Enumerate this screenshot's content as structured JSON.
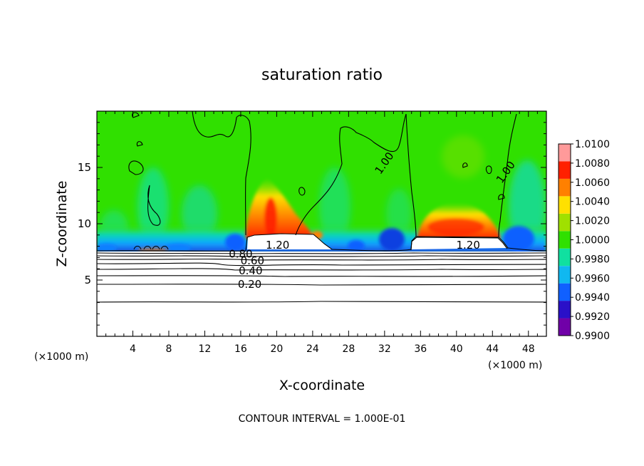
{
  "chart_data": {
    "type": "heatmap",
    "title": "saturation ratio",
    "xlabel": "X-coordinate",
    "ylabel": "Z-coordinate",
    "x_unit_left": "(×1000 m)",
    "x_unit_right": "(×1000 m)",
    "xlim": [
      0,
      50
    ],
    "ylim": [
      0,
      20
    ],
    "x_ticks": [
      {
        "value": 4,
        "label": "4"
      },
      {
        "value": 8,
        "label": "8"
      },
      {
        "value": 12,
        "label": "12"
      },
      {
        "value": 16,
        "label": "16"
      },
      {
        "value": 20,
        "label": "20"
      },
      {
        "value": 24,
        "label": "24"
      },
      {
        "value": 28,
        "label": "28"
      },
      {
        "value": 32,
        "label": "32"
      },
      {
        "value": 36,
        "label": "36"
      },
      {
        "value": 40,
        "label": "40"
      },
      {
        "value": 44,
        "label": "44"
      },
      {
        "value": 48,
        "label": "48"
      }
    ],
    "y_ticks": [
      {
        "value": 5,
        "label": "5"
      },
      {
        "value": 10,
        "label": "10"
      },
      {
        "value": 15,
        "label": "15"
      }
    ],
    "colorbar": {
      "levels": [
        0.99,
        0.992,
        0.994,
        0.996,
        0.998,
        1.0,
        1.002,
        1.004,
        1.006,
        1.008,
        1.01
      ],
      "labels": [
        "0.9900",
        "0.9920",
        "0.9940",
        "0.9960",
        "0.9980",
        "1.0000",
        "1.0020",
        "1.0040",
        "1.0060",
        "1.0080",
        "1.0100"
      ],
      "colors": [
        "#7000a8",
        "#2a10c8",
        "#1060ff",
        "#10b8f0",
        "#10e0a0",
        "#30e000",
        "#a0e000",
        "#ffe000",
        "#ff8000",
        "#ff2000",
        "#ff9a9a"
      ]
    },
    "contour_labels": [
      {
        "text": "1.20",
        "x": 20.1,
        "y": 7.8
      },
      {
        "text": "1.20",
        "x": 41.3,
        "y": 7.8
      },
      {
        "text": "0.80",
        "x": 16.0,
        "y": 7.0
      },
      {
        "text": "0.60",
        "x": 17.3,
        "y": 6.4
      },
      {
        "text": "0.40",
        "x": 17.1,
        "y": 5.5
      },
      {
        "text": "0.20",
        "x": 17.0,
        "y": 4.3
      },
      {
        "text": "1.00",
        "x": 32.3,
        "y": 15.2
      },
      {
        "text": "1.00",
        "x": 45.8,
        "y": 14.4
      }
    ],
    "contour_interval_label": "CONTOUR INTERVAL =  1.000E-01"
  }
}
